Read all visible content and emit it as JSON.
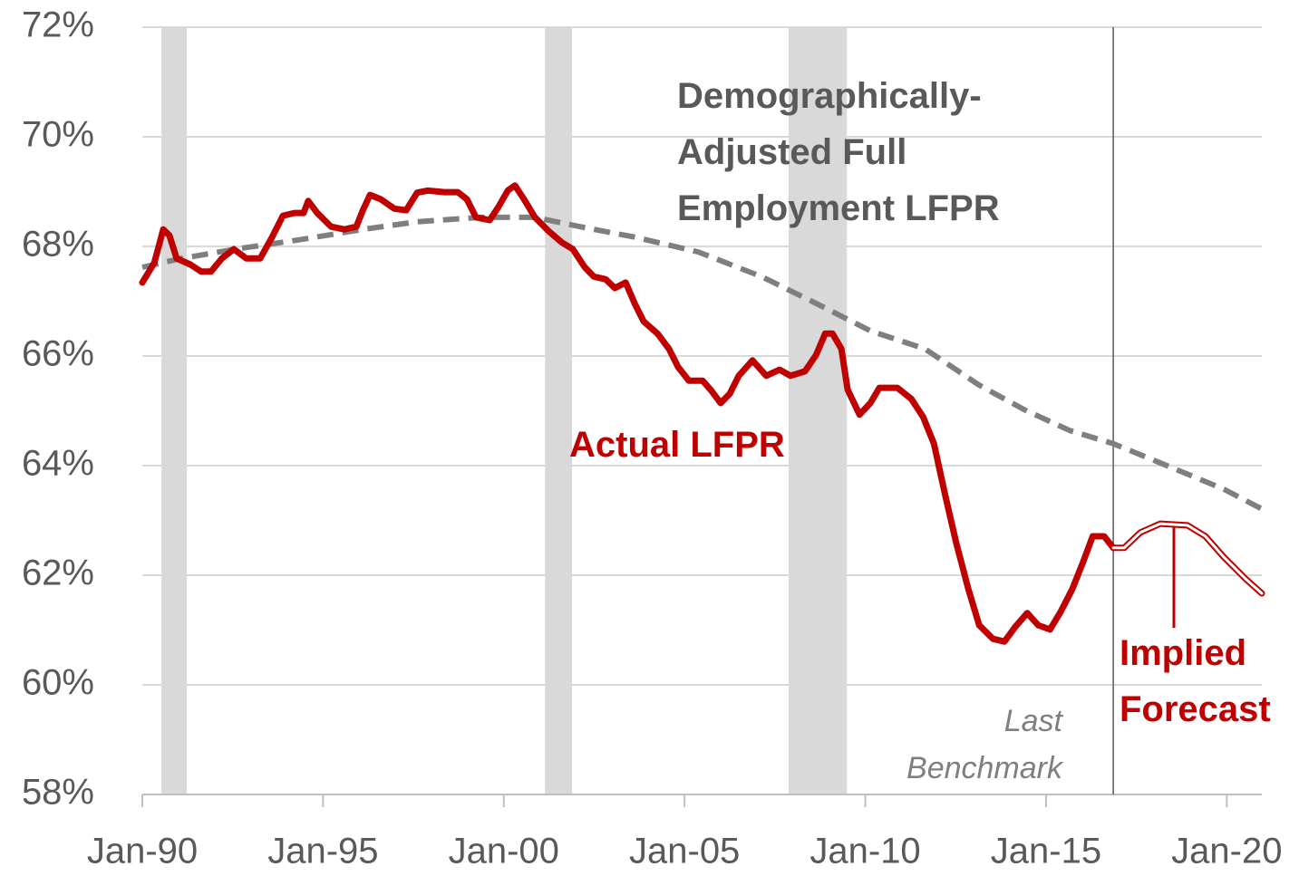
{
  "chart_data": {
    "type": "line",
    "xlim": [
      1990,
      2020.97
    ],
    "ylim": [
      58,
      72
    ],
    "xticks": [
      {
        "value": 1990,
        "label": "Jan-90"
      },
      {
        "value": 1995,
        "label": "Jan-95"
      },
      {
        "value": 2000,
        "label": "Jan-00"
      },
      {
        "value": 2005,
        "label": "Jan-05"
      },
      {
        "value": 2010,
        "label": "Jan-10"
      },
      {
        "value": 2015,
        "label": "Jan-15"
      },
      {
        "value": 2020,
        "label": "Jan-20"
      }
    ],
    "yticks": [
      {
        "value": 58,
        "label": "58%"
      },
      {
        "value": 60,
        "label": "60%"
      },
      {
        "value": 62,
        "label": "62%"
      },
      {
        "value": 64,
        "label": "64%"
      },
      {
        "value": 66,
        "label": "66%"
      },
      {
        "value": 68,
        "label": "68%"
      },
      {
        "value": 70,
        "label": "70%"
      },
      {
        "value": 72,
        "label": "72%"
      }
    ],
    "grid": true,
    "shaded_periods": [
      [
        1990.53,
        1991.23
      ],
      [
        2001.14,
        2001.89
      ],
      [
        2007.88,
        2009.49
      ]
    ],
    "shade_color": "#d9d9d9",
    "series": [
      {
        "name": "Actual LFPR",
        "color": "#c00000",
        "style": "solid",
        "x": [
          1990,
          1990.33,
          1990.58,
          1990.75,
          1990.95,
          1991.33,
          1991.63,
          1991.9,
          1992.2,
          1992.53,
          1992.88,
          1993.26,
          1993.59,
          1993.89,
          1994.21,
          1994.46,
          1994.59,
          1994.84,
          1995.22,
          1995.59,
          1995.92,
          1996.1,
          1996.3,
          1996.6,
          1996.97,
          1997.3,
          1997.6,
          1997.9,
          1998.35,
          1998.73,
          1998.98,
          1999.23,
          1999.61,
          1999.86,
          2000.11,
          2000.31,
          2000.56,
          2000.86,
          2001.24,
          2001.61,
          2001.91,
          2002.24,
          2002.49,
          2002.82,
          2003.07,
          2003.37,
          2003.62,
          2003.87,
          2004.25,
          2004.57,
          2004.82,
          2005.12,
          2005.5,
          2005.75,
          2006,
          2006.25,
          2006.5,
          2006.88,
          2007.26,
          2007.63,
          2007.93,
          2008.33,
          2008.64,
          2008.89,
          2009.09,
          2009.34,
          2009.51,
          2009.84,
          2010.14,
          2010.39,
          2010.89,
          2011.27,
          2011.6,
          2011.9,
          2012.2,
          2012.52,
          2012.85,
          2013.15,
          2013.53,
          2013.85,
          2014.15,
          2014.48,
          2014.78,
          2015.11,
          2015.41,
          2015.73,
          2016.03,
          2016.29,
          2016.61,
          2016.86
        ],
        "values": [
          67.34,
          67.7,
          68.31,
          68.2,
          67.78,
          67.67,
          67.54,
          67.54,
          67.78,
          67.95,
          67.78,
          67.78,
          68.17,
          68.56,
          68.61,
          68.61,
          68.83,
          68.61,
          68.36,
          68.31,
          68.36,
          68.66,
          68.94,
          68.86,
          68.69,
          68.66,
          68.98,
          69.02,
          68.99,
          68.99,
          68.86,
          68.53,
          68.48,
          68.73,
          69.02,
          69.11,
          68.86,
          68.53,
          68.28,
          68.07,
          67.95,
          67.62,
          67.45,
          67.4,
          67.24,
          67.34,
          66.96,
          66.63,
          66.41,
          66.13,
          65.8,
          65.55,
          65.55,
          65.36,
          65.14,
          65.31,
          65.64,
          65.92,
          65.64,
          65.75,
          65.64,
          65.72,
          66.02,
          66.41,
          66.41,
          66.13,
          65.39,
          64.93,
          65.14,
          65.42,
          65.42,
          65.22,
          64.89,
          64.4,
          63.49,
          62.58,
          61.75,
          61.09,
          60.84,
          60.79,
          61.06,
          61.31,
          61.09,
          61.01,
          61.34,
          61.75,
          62.25,
          62.71,
          62.71,
          62.5
        ]
      },
      {
        "name": "Implied\nForecast",
        "color": "#c00000",
        "style": "double",
        "x": [
          2016.86,
          2017.16,
          2017.61,
          2018.16,
          2018.91,
          2019.41,
          2019.92,
          2020.54,
          2020.97
        ],
        "values": [
          62.5,
          62.5,
          62.78,
          62.94,
          62.91,
          62.71,
          62.33,
          61.92,
          61.67
        ]
      },
      {
        "name": "Demographically-\nAdjusted Full\nEmployment LFPR",
        "color": "#7f7f7f",
        "style": "dashed",
        "x": [
          1990,
          1991.08,
          1992.58,
          1994.34,
          1996.1,
          1997.6,
          1999.36,
          2000.86,
          2002.11,
          2003.62,
          2005.37,
          2007.13,
          2008.64,
          2010.14,
          2011.65,
          2013.15,
          2014.4,
          2015.66,
          2016.86,
          2018.42,
          2019.92,
          2020.97
        ],
        "values": [
          67.62,
          67.78,
          67.95,
          68.12,
          68.31,
          68.45,
          68.53,
          68.53,
          68.36,
          68.17,
          67.9,
          67.45,
          66.96,
          66.46,
          66.13,
          65.47,
          65.02,
          64.64,
          64.4,
          63.98,
          63.57,
          63.21
        ]
      }
    ],
    "annotations": [
      {
        "text": "Last\nBenchmark",
        "x": 2016.86
      }
    ]
  }
}
